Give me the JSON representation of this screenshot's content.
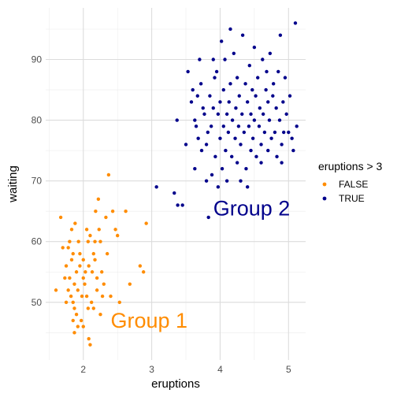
{
  "chart_data": {
    "type": "scatter",
    "xlabel": "eruptions",
    "ylabel": "waiting",
    "xlim": [
      1.45,
      5.25
    ],
    "ylim": [
      40.5,
      98.5
    ],
    "x_ticks": [
      2,
      3,
      4,
      5
    ],
    "y_ticks": [
      50,
      60,
      70,
      80,
      90
    ],
    "x_tick_labels": [
      "2",
      "3",
      "4",
      "5"
    ],
    "y_tick_labels": [
      "50",
      "60",
      "70",
      "80",
      "90"
    ],
    "grid": true,
    "legend": {
      "title": "eruptions > 3",
      "position": "right",
      "entries": [
        "FALSE",
        "TRUE"
      ]
    },
    "series": [
      {
        "name": "FALSE",
        "color": "#FF8C00",
        "points": [
          [
            1.6,
            52
          ],
          [
            1.67,
            64
          ],
          [
            1.7,
            59
          ],
          [
            1.73,
            54
          ],
          [
            1.75,
            56
          ],
          [
            1.75,
            50
          ],
          [
            1.78,
            52
          ],
          [
            1.78,
            59
          ],
          [
            1.8,
            60
          ],
          [
            1.8,
            54
          ],
          [
            1.82,
            51
          ],
          [
            1.83,
            57
          ],
          [
            1.83,
            62
          ],
          [
            1.85,
            58
          ],
          [
            1.85,
            50
          ],
          [
            1.85,
            47
          ],
          [
            1.87,
            49
          ],
          [
            1.87,
            53
          ],
          [
            1.87,
            45
          ],
          [
            1.88,
            63
          ],
          [
            1.9,
            55
          ],
          [
            1.9,
            48
          ],
          [
            1.92,
            52
          ],
          [
            1.92,
            46
          ],
          [
            1.93,
            60
          ],
          [
            1.95,
            56
          ],
          [
            1.95,
            58
          ],
          [
            1.97,
            47
          ],
          [
            1.98,
            51
          ],
          [
            2.0,
            54
          ],
          [
            2.0,
            57
          ],
          [
            2.0,
            46
          ],
          [
            2.02,
            53
          ],
          [
            2.03,
            55
          ],
          [
            2.05,
            51
          ],
          [
            2.05,
            62
          ],
          [
            2.07,
            60
          ],
          [
            2.07,
            49
          ],
          [
            2.08,
            44
          ],
          [
            2.08,
            56
          ],
          [
            2.1,
            43
          ],
          [
            2.1,
            61
          ],
          [
            2.12,
            50
          ],
          [
            2.13,
            55
          ],
          [
            2.15,
            58
          ],
          [
            2.15,
            49
          ],
          [
            2.17,
            57
          ],
          [
            2.17,
            60
          ],
          [
            2.18,
            65
          ],
          [
            2.2,
            52
          ],
          [
            2.2,
            54
          ],
          [
            2.22,
            67
          ],
          [
            2.23,
            62
          ],
          [
            2.25,
            60
          ],
          [
            2.25,
            48
          ],
          [
            2.27,
            55
          ],
          [
            2.28,
            51
          ],
          [
            2.3,
            53
          ],
          [
            2.33,
            64
          ],
          [
            2.35,
            58
          ],
          [
            2.37,
            71
          ],
          [
            2.4,
            51
          ],
          [
            2.43,
            65
          ],
          [
            2.47,
            62
          ],
          [
            2.5,
            61
          ],
          [
            2.53,
            50
          ],
          [
            2.62,
            65
          ],
          [
            2.68,
            53
          ],
          [
            2.83,
            56
          ],
          [
            2.88,
            55
          ],
          [
            2.92,
            63
          ]
        ]
      },
      {
        "name": "TRUE",
        "color": "#00008B",
        "points": [
          [
            3.07,
            69
          ],
          [
            3.33,
            68
          ],
          [
            3.37,
            80
          ],
          [
            3.38,
            66
          ],
          [
            3.45,
            66
          ],
          [
            3.5,
            76
          ],
          [
            3.53,
            88
          ],
          [
            3.58,
            83
          ],
          [
            3.6,
            85
          ],
          [
            3.63,
            72
          ],
          [
            3.63,
            80
          ],
          [
            3.65,
            79
          ],
          [
            3.67,
            84
          ],
          [
            3.68,
            77
          ],
          [
            3.7,
            90
          ],
          [
            3.72,
            86
          ],
          [
            3.73,
            75
          ],
          [
            3.75,
            82
          ],
          [
            3.77,
            81
          ],
          [
            3.8,
            70
          ],
          [
            3.8,
            76
          ],
          [
            3.82,
            78
          ],
          [
            3.83,
            64
          ],
          [
            3.85,
            84
          ],
          [
            3.87,
            79
          ],
          [
            3.88,
            71
          ],
          [
            3.9,
            82
          ],
          [
            3.92,
            87
          ],
          [
            3.93,
            74
          ],
          [
            3.95,
            88
          ],
          [
            3.97,
            69
          ],
          [
            3.97,
            81
          ],
          [
            4.0,
            77
          ],
          [
            4.0,
            83
          ],
          [
            4.02,
            93
          ],
          [
            4.03,
            72
          ],
          [
            4.05,
            79
          ],
          [
            4.05,
            85
          ],
          [
            4.07,
            90
          ],
          [
            4.08,
            75
          ],
          [
            4.1,
            81
          ],
          [
            4.1,
            70
          ],
          [
            4.12,
            78
          ],
          [
            4.13,
            83
          ],
          [
            4.15,
            86
          ],
          [
            4.17,
            74
          ],
          [
            4.18,
            80
          ],
          [
            4.2,
            91
          ],
          [
            4.22,
            77
          ],
          [
            4.23,
            82
          ],
          [
            4.25,
            73
          ],
          [
            4.25,
            87
          ],
          [
            4.27,
            79
          ],
          [
            4.28,
            84
          ],
          [
            4.3,
            76
          ],
          [
            4.32,
            81
          ],
          [
            4.33,
            94
          ],
          [
            4.35,
            78
          ],
          [
            4.37,
            86
          ],
          [
            4.38,
            72
          ],
          [
            4.4,
            83
          ],
          [
            4.42,
            79
          ],
          [
            4.43,
            89
          ],
          [
            4.45,
            75
          ],
          [
            4.45,
            81
          ],
          [
            4.47,
            85
          ],
          [
            4.48,
            77
          ],
          [
            4.5,
            92
          ],
          [
            4.5,
            80
          ],
          [
            4.52,
            84
          ],
          [
            4.53,
            74
          ],
          [
            4.55,
            87
          ],
          [
            4.57,
            79
          ],
          [
            4.58,
            82
          ],
          [
            4.6,
            76
          ],
          [
            4.62,
            90
          ],
          [
            4.63,
            81
          ],
          [
            4.65,
            78
          ],
          [
            4.67,
            85
          ],
          [
            4.68,
            88
          ],
          [
            4.7,
            75
          ],
          [
            4.7,
            83
          ],
          [
            4.72,
            80
          ],
          [
            4.73,
            91
          ],
          [
            4.75,
            77
          ],
          [
            4.77,
            84
          ],
          [
            4.78,
            86
          ],
          [
            4.8,
            78
          ],
          [
            4.82,
            82
          ],
          [
            4.83,
            74
          ],
          [
            4.85,
            88
          ],
          [
            4.87,
            80
          ],
          [
            4.88,
            94
          ],
          [
            4.9,
            76
          ],
          [
            4.92,
            83
          ],
          [
            4.93,
            78
          ],
          [
            4.95,
            87
          ],
          [
            4.97,
            81
          ],
          [
            5.0,
            78
          ],
          [
            5.02,
            84
          ],
          [
            5.05,
            77
          ],
          [
            5.07,
            75
          ],
          [
            5.1,
            96
          ],
          [
            5.12,
            79
          ],
          [
            4.3,
            70
          ],
          [
            4.6,
            73
          ],
          [
            4.4,
            69
          ],
          [
            3.9,
            90
          ],
          [
            4.15,
            95
          ],
          [
            4.9,
            73
          ]
        ]
      }
    ],
    "annotations": [
      {
        "text": "Group 1",
        "x": 2.4,
        "y": 47,
        "color": "#FF8C00"
      },
      {
        "text": "Group 2",
        "x": 3.9,
        "y": 65.5,
        "color": "#00008B"
      }
    ]
  }
}
